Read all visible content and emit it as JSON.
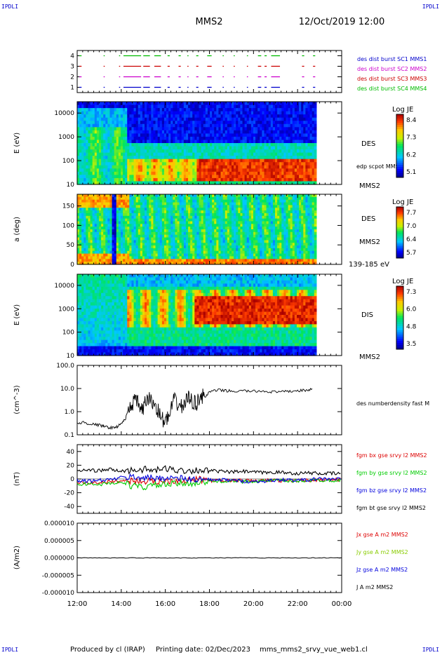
{
  "header": {
    "corner_label": "IPDLI",
    "spacecraft": "MMS2",
    "datetime": "12/Oct/2019 12:00"
  },
  "footer": {
    "produced_by": "Produced by cl (IRAP)",
    "printing_date": "Printing date: 02/Dec/2023",
    "file": "mms_mms2_srvy_vue_web1.cl"
  },
  "colors": {
    "mms1": "#0000cc",
    "mms2": "#cc00cc",
    "mms3": "#cc0000",
    "mms4": "#00bb00",
    "bx": "#dd0000",
    "by": "#00cc00",
    "bz": "#0000dd",
    "bt": "#000000"
  },
  "chart_data": [
    {
      "type": "scatter",
      "panel": "burst",
      "xlim": [
        "12:00",
        "00:00"
      ],
      "ylim": [
        0.5,
        4.5
      ],
      "y_ticks": [
        "1",
        "2",
        "3",
        "4"
      ],
      "legend": [
        {
          "label": "des dist burst SC1 MMS1",
          "color": "#0000cc"
        },
        {
          "label": "des dist burst SC2 MMS2",
          "color": "#cc00cc"
        },
        {
          "label": "des dist burst SC3 MMS3",
          "color": "#cc0000"
        },
        {
          "label": "des dist burst SC4 MMS4",
          "color": "#00bb00"
        }
      ],
      "intervals_hours": [
        [
          12.1,
          12.2
        ],
        [
          13.2,
          13.25
        ],
        [
          13.9,
          13.95
        ],
        [
          14.1,
          14.9
        ],
        [
          15.0,
          15.3
        ],
        [
          15.5,
          15.8
        ],
        [
          16.1,
          16.2
        ],
        [
          16.6,
          16.7
        ],
        [
          17.0,
          17.05
        ],
        [
          17.4,
          17.5
        ],
        [
          17.9,
          18.1
        ],
        [
          18.6,
          18.65
        ],
        [
          19.1,
          19.15
        ],
        [
          19.7,
          19.75
        ],
        [
          20.2,
          20.35
        ],
        [
          20.5,
          20.6
        ],
        [
          20.8,
          21.2
        ],
        [
          22.2,
          22.3
        ],
        [
          22.7,
          22.8
        ]
      ]
    },
    {
      "type": "heatmap",
      "panel": "des-energy",
      "ylabel": "E (eV)",
      "y_scale": "log",
      "ylim": [
        10,
        30000
      ],
      "y_ticks": [
        "10",
        "100",
        "1000",
        "10000"
      ],
      "right_label": "DES",
      "annotation": "edp scpot MMS2",
      "bottom_label": "MMS2",
      "colorbar_title": "Log JE",
      "colorbar_ticks": [
        "8.4",
        "7.3",
        "6.2",
        "5.1"
      ],
      "data_end_hour": 22.85
    },
    {
      "type": "heatmap",
      "panel": "des-pitch",
      "ylabel": "a (deg)",
      "ylim": [
        0,
        180
      ],
      "y_ticks": [
        "0",
        "50",
        "100",
        "150"
      ],
      "right_label": "DES",
      "bottom_label": "MMS2",
      "energy_range": "139-185 eV",
      "colorbar_title": "Log JE",
      "colorbar_ticks": [
        "7.7",
        "7.0",
        "6.4",
        "5.7"
      ],
      "data_end_hour": 22.85
    },
    {
      "type": "heatmap",
      "panel": "dis-energy",
      "ylabel": "E (eV)",
      "y_scale": "log",
      "ylim": [
        10,
        30000
      ],
      "y_ticks": [
        "10",
        "100",
        "1000",
        "10000"
      ],
      "right_label": "DIS",
      "bottom_label": "MMS2",
      "colorbar_title": "Log JE",
      "colorbar_ticks": [
        "7.3",
        "6.0",
        "4.8",
        "3.5"
      ],
      "data_end_hour": 22.85
    },
    {
      "type": "line",
      "panel": "density",
      "ylabel": "(cm^-3)",
      "y_scale": "log",
      "ylim": [
        0.1,
        100
      ],
      "y_ticks": [
        "0.1",
        "1.0",
        "10.0",
        "100.0"
      ],
      "series": [
        {
          "name": "des numberdensity fast M",
          "color": "#000000",
          "x": [
            12.0,
            12.3,
            12.5,
            12.8,
            13.1,
            13.3,
            13.5,
            13.8,
            14.0,
            14.2,
            14.4,
            14.6,
            14.8,
            15.0,
            15.2,
            15.4,
            15.6,
            15.8,
            16.0,
            16.2,
            16.4,
            16.6,
            16.8,
            17.0,
            17.2,
            17.4,
            17.6,
            17.8,
            18.0,
            18.4,
            18.8,
            19.2,
            19.6,
            20.0,
            20.4,
            20.8,
            21.2,
            21.6,
            22.0,
            22.4,
            22.7
          ],
          "y": [
            0.3,
            0.35,
            0.3,
            0.28,
            0.25,
            0.22,
            0.2,
            0.22,
            0.3,
            0.5,
            1.5,
            3.0,
            2.0,
            1.0,
            4.0,
            2.5,
            1.5,
            0.5,
            0.4,
            0.6,
            3.0,
            2.0,
            1.5,
            4.0,
            3.0,
            2.0,
            5.0,
            4.0,
            7.0,
            8.5,
            8.0,
            7.5,
            8.0,
            7.5,
            7.8,
            7.2,
            7.0,
            7.5,
            8.0,
            8.5,
            9.0
          ]
        }
      ]
    },
    {
      "type": "line",
      "panel": "magnetic-field",
      "ylabel": "(nT)",
      "ylim": [
        -50,
        50
      ],
      "y_ticks": [
        "-40",
        "-20",
        "0",
        "20",
        "40"
      ],
      "x": [
        12.0,
        12.5,
        13.0,
        13.5,
        14.0,
        14.5,
        15.0,
        15.5,
        16.0,
        16.5,
        17.0,
        17.5,
        18.0,
        18.5,
        19.0,
        19.5,
        20.0,
        20.5,
        21.0,
        21.5,
        22.0,
        22.5,
        23.0,
        23.5,
        24.0
      ],
      "series": [
        {
          "name": "fgm bx gse srvy l2 MMS2",
          "color": "#dd0000",
          "values": [
            -5,
            -6,
            -5,
            -4,
            -3,
            -2,
            -3,
            -4,
            -3,
            -2,
            -2,
            -1,
            -2,
            -3,
            -2,
            -2,
            -3,
            -2,
            -2,
            -3,
            -2,
            -2,
            -1,
            -1,
            -1
          ]
        },
        {
          "name": "fgm by gse srvy l2 MMS2",
          "color": "#00cc00",
          "values": [
            -8,
            -7,
            -8,
            -6,
            -5,
            -10,
            -12,
            -9,
            -8,
            -7,
            -6,
            -5,
            -4,
            -3,
            -3,
            -4,
            -3,
            -3,
            -2,
            -3,
            -3,
            -2,
            -2,
            -2,
            -2
          ]
        },
        {
          "name": "fgm bz gse srvy l2 MMS2",
          "color": "#0000dd",
          "values": [
            -2,
            -3,
            -2,
            -1,
            2,
            3,
            2,
            1,
            2,
            1,
            0,
            -1,
            -2,
            -1,
            -2,
            -3,
            -4,
            -3,
            -2,
            -1,
            -2,
            -1,
            0,
            0,
            0
          ]
        },
        {
          "name": "fgm bt gse srvy l2 MMS2",
          "color": "#000000",
          "values": [
            12,
            13,
            12,
            14,
            11,
            13,
            14,
            12,
            15,
            13,
            12,
            13,
            12,
            11,
            10,
            11,
            10,
            9,
            10,
            9,
            8,
            9,
            8,
            8,
            8
          ]
        }
      ]
    },
    {
      "type": "line",
      "panel": "current-density",
      "ylabel": "(A/m2)",
      "ylim": [
        -1e-05,
        1e-05
      ],
      "y_ticks": [
        "-0.000010",
        "-0.000005",
        "0.000000",
        "0.000005",
        "0.000010"
      ],
      "x_ticks": [
        "12:00",
        "14:00",
        "16:00",
        "18:00",
        "20:00",
        "22:00",
        "00:00"
      ],
      "series": [
        {
          "name": "Jx gse A m2 MMS2",
          "color": "#dd0000"
        },
        {
          "name": "Jy gse A m2 MMS2",
          "color": "#88cc00"
        },
        {
          "name": "Jz gse A m2 MMS2",
          "color": "#0000dd"
        },
        {
          "name": "J A m2 MMS2",
          "color": "#000000"
        }
      ]
    }
  ]
}
